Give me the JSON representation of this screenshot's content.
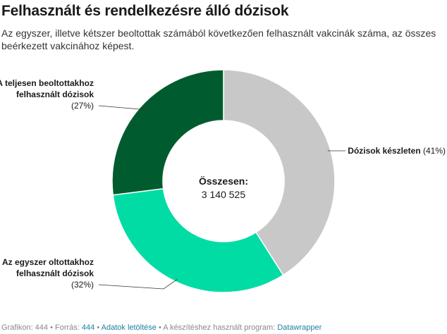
{
  "header": {
    "title": "Felhasznált és rendelkezésre álló dózisok",
    "subtitle": "Az egyszer, illetve kétszer beoltottak számából következően felhasznált vakcinák száma, az összes beérkezett vakcinához képest."
  },
  "chart_data": {
    "type": "pie",
    "donut": true,
    "center": {
      "title": "Összesen:",
      "value": "3 140 525"
    },
    "slices": [
      {
        "label_lines": [
          "Dózisok készleten"
        ],
        "pct_text": "(41%)",
        "value": 41,
        "color": "#c8c8c8",
        "side": "right",
        "label_inline": true
      },
      {
        "label_lines": [
          "Az egyszer oltottakhoz",
          "felhasznált dózisok"
        ],
        "pct_text": "(32%)",
        "value": 32,
        "color": "#00dca4",
        "side": "left",
        "label_inline": false
      },
      {
        "label_lines": [
          "A teljesen beoltottakhoz",
          "felhasznált dózisok"
        ],
        "pct_text": "(27%)",
        "value": 27,
        "color": "#005c2f",
        "side": "left",
        "label_inline": false
      }
    ]
  },
  "footer": {
    "grafikon_label": "Grafikon: 444",
    "sep1": " • ",
    "forras_prefix": "Forrás: ",
    "forras_link": "444",
    "sep2": " • ",
    "download_link": "Adatok letöltése",
    "sep3": " • ",
    "program_prefix": "A készítéshez használt program: ",
    "program_link": "Datawrapper"
  }
}
